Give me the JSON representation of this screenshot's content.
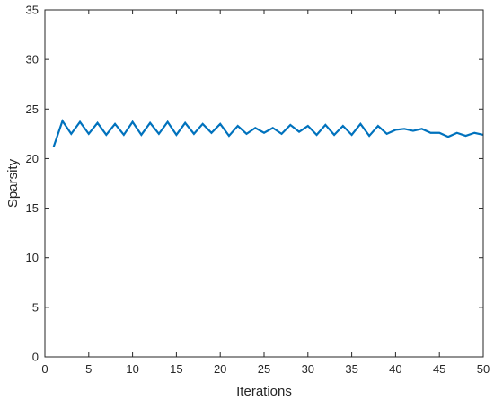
{
  "chart_data": {
    "type": "line",
    "title": "",
    "xlabel": "Iterations",
    "ylabel": "Sparsity",
    "xlim": [
      0,
      50
    ],
    "ylim": [
      0,
      35
    ],
    "xticks": [
      0,
      5,
      10,
      15,
      20,
      25,
      30,
      35,
      40,
      45,
      50
    ],
    "yticks": [
      0,
      5,
      10,
      15,
      20,
      25,
      30,
      35
    ],
    "grid": false,
    "legend": "none",
    "series": [
      {
        "color": "#0072BD",
        "x": [
          1,
          2,
          3,
          4,
          5,
          6,
          7,
          8,
          9,
          10,
          11,
          12,
          13,
          14,
          15,
          16,
          17,
          18,
          19,
          20,
          21,
          22,
          23,
          24,
          25,
          26,
          27,
          28,
          29,
          30,
          31,
          32,
          33,
          34,
          35,
          36,
          37,
          38,
          39,
          40,
          41,
          42,
          43,
          44,
          45,
          46,
          47,
          48,
          49,
          50
        ],
        "y": [
          21.2,
          23.8,
          22.5,
          23.7,
          22.5,
          23.6,
          22.4,
          23.5,
          22.4,
          23.7,
          22.4,
          23.6,
          22.5,
          23.7,
          22.4,
          23.6,
          22.5,
          23.5,
          22.6,
          23.5,
          22.3,
          23.3,
          22.5,
          23.1,
          22.6,
          23.1,
          22.5,
          23.4,
          22.7,
          23.3,
          22.4,
          23.4,
          22.4,
          23.3,
          22.4,
          23.5,
          22.3,
          23.3,
          22.5,
          22.9,
          23.0,
          22.8,
          23.0,
          22.6,
          22.6,
          22.2,
          22.6,
          22.3,
          22.6,
          22.4
        ]
      }
    ]
  }
}
